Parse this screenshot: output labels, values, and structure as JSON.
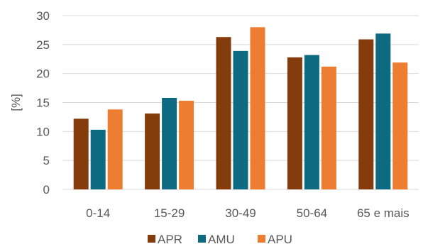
{
  "chart_data": {
    "type": "bar",
    "categories": [
      "0-14",
      "15-29",
      "30-49",
      "50-64",
      "65 e mais"
    ],
    "series": [
      {
        "name": "APR",
        "color": "#843c0c",
        "values": [
          12.2,
          13.1,
          26.3,
          22.8,
          25.9
        ]
      },
      {
        "name": "AMU",
        "color": "#0e6a80",
        "values": [
          10.3,
          15.8,
          23.9,
          23.2,
          26.9
        ]
      },
      {
        "name": "APU",
        "color": "#ed7d31",
        "values": [
          13.8,
          15.3,
          28.0,
          21.2,
          21.9
        ]
      }
    ],
    "ylabel": "[%]",
    "xlabel": "",
    "ylim": [
      0,
      30
    ],
    "yticks": [
      0,
      5,
      10,
      15,
      20,
      25,
      30
    ],
    "grid": true,
    "legend_position": "bottom"
  }
}
